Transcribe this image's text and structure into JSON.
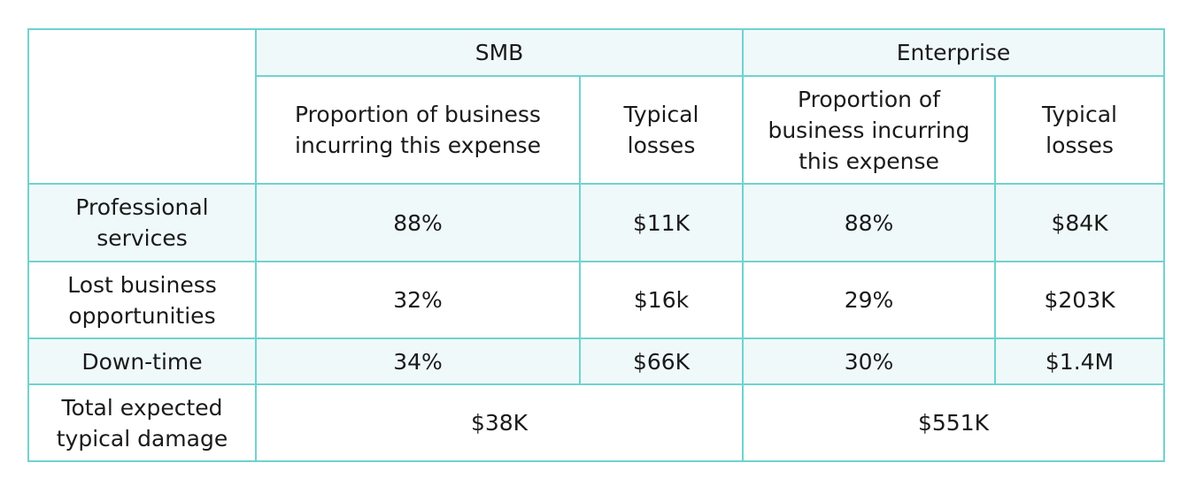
{
  "header": {
    "corner": "",
    "smb": "SMB",
    "enterprise": "Enterprise",
    "smb_proportion": "Proportion of business incurring this expense",
    "smb_losses": "Typical losses",
    "ent_proportion": "Proportion of business incurring this expense",
    "ent_losses": "Typical losses"
  },
  "rows": [
    {
      "label": "Professional services",
      "smb_proportion": "88%",
      "smb_losses": "$11K",
      "ent_proportion": "88%",
      "ent_losses": "$84K"
    },
    {
      "label": "Lost business opportunities",
      "smb_proportion": "32%",
      "smb_losses": "$16k",
      "ent_proportion": "29%",
      "ent_losses": "$203K"
    },
    {
      "label": "Down-time",
      "smb_proportion": "34%",
      "smb_losses": "$66K",
      "ent_proportion": "30%",
      "ent_losses": "$1.4M"
    }
  ],
  "total": {
    "label": "Total expected typical damage",
    "smb": "$38K",
    "enterprise": "$551K"
  },
  "colors": {
    "border": "#6fd3d0",
    "tint": "#f0f9fa"
  }
}
